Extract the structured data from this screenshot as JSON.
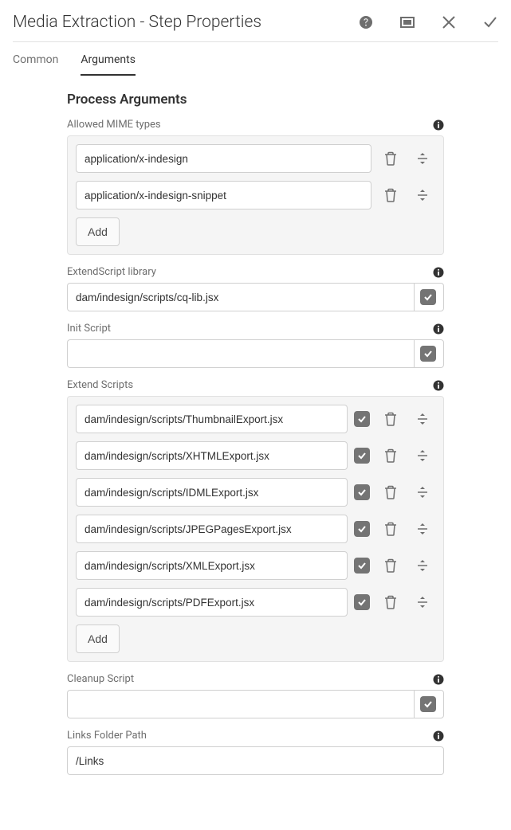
{
  "header": {
    "title": "Media Extraction - Step Properties"
  },
  "tabs": {
    "common": "Common",
    "arguments": "Arguments"
  },
  "section": {
    "title": "Process Arguments"
  },
  "labels": {
    "allowed_mime": "Allowed MIME types",
    "extendscript_lib": "ExtendScript library",
    "init_script": "Init Script",
    "extend_scripts": "Extend Scripts",
    "cleanup_script": "Cleanup Script",
    "links_folder": "Links Folder Path",
    "add": "Add"
  },
  "mime_types": [
    "application/x-indesign",
    "application/x-indesign-snippet"
  ],
  "extendscript_library": "dam/indesign/scripts/cq-lib.jsx",
  "init_script": "",
  "extend_scripts": [
    "dam/indesign/scripts/ThumbnailExport.jsx",
    "dam/indesign/scripts/XHTMLExport.jsx",
    "dam/indesign/scripts/IDMLExport.jsx",
    "dam/indesign/scripts/JPEGPagesExport.jsx",
    "dam/indesign/scripts/XMLExport.jsx",
    "dam/indesign/scripts/PDFExport.jsx"
  ],
  "cleanup_script": "",
  "links_folder_path": "/Links",
  "colors": {
    "text_primary": "#323232",
    "text_secondary": "#6e6e6e",
    "border": "#d0d0d0",
    "box_bg": "#f5f5f5",
    "box_border": "#e1e1e1",
    "check_bg": "#747474"
  }
}
